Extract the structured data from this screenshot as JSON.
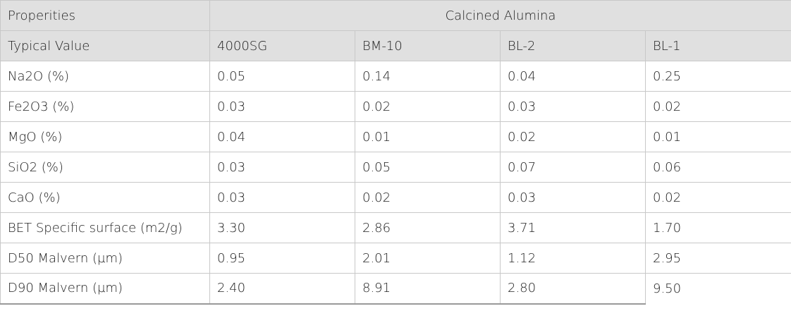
{
  "table": {
    "group_header": [
      "Properities",
      "Calcined Alumina"
    ],
    "columns": [
      "Typical Value",
      "4000SG",
      "BM-10",
      "BL-2",
      "BL-1"
    ],
    "rows": [
      [
        "Na2O (%)",
        "0.05",
        "0.14",
        "0.04",
        "0.25"
      ],
      [
        "Fe2O3 (%)",
        "0.03",
        "0.02",
        "0.03",
        "0.02"
      ],
      [
        "MgO (%)",
        "0.04",
        "0.01",
        "0.02",
        "0.01"
      ],
      [
        "SiO2 (%)",
        "0.03",
        "0.05",
        "0.07",
        "0.06"
      ],
      [
        "CaO (%)",
        "0.03",
        "0.02",
        "0.03",
        "0.02"
      ],
      [
        "BET Specific surface (m2/g)",
        "3.30",
        "2.86",
        "3.71",
        "1.70"
      ],
      [
        "D50 Malvern (µm)",
        "0.95",
        "2.01",
        "1.12",
        "2.95"
      ],
      [
        "D90 Malvern (µm)",
        "2.40",
        "8.91",
        "2.80",
        "9.50"
      ]
    ]
  }
}
